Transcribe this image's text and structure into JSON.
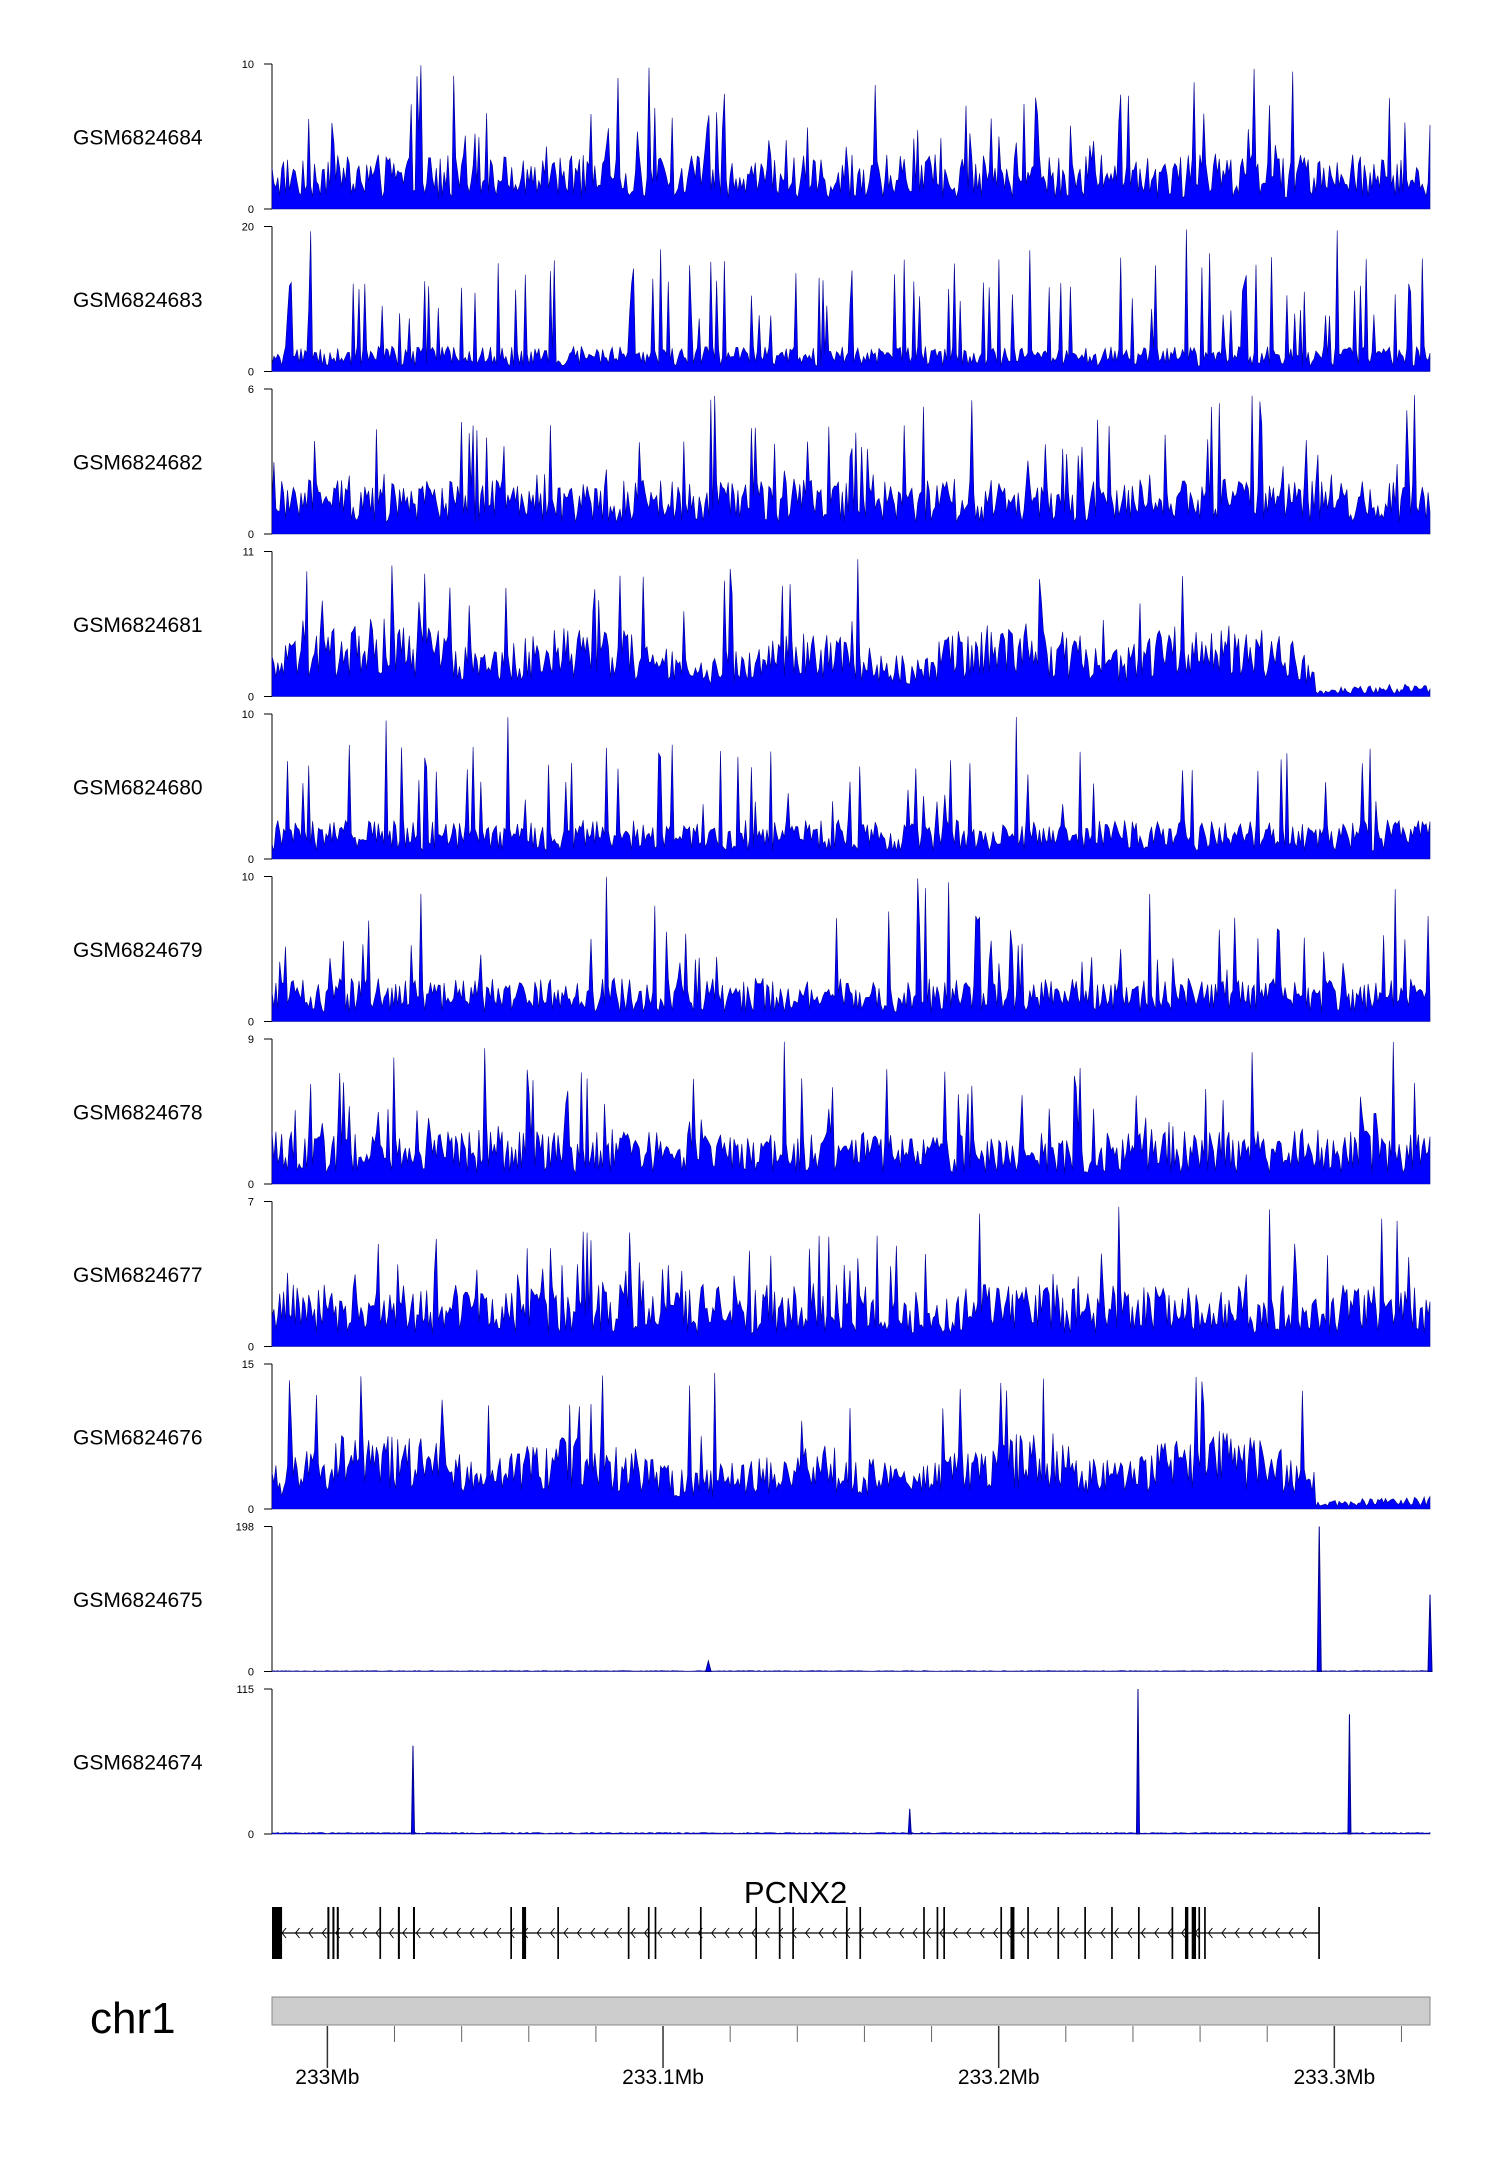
{
  "chart_data": {
    "type": "area",
    "track_color": "#0000ff",
    "outline_color": "#00008b",
    "tracks": [
      {
        "name": "GSM6824684",
        "ymax": 10,
        "ymin": 0,
        "pattern": "noise",
        "baseline": 2.5
      },
      {
        "name": "GSM6824683",
        "ymax": 20,
        "ymin": 0,
        "pattern": "spiky",
        "baseline": 3.5
      },
      {
        "name": "GSM6824682",
        "ymax": 6,
        "ymin": 0,
        "pattern": "noise",
        "baseline": 1.5
      },
      {
        "name": "GSM6824681",
        "ymax": 11,
        "ymin": 0,
        "pattern": "broad",
        "baseline": 3
      },
      {
        "name": "GSM6824680",
        "ymax": 10,
        "ymin": 0,
        "pattern": "noise",
        "baseline": 1.8
      },
      {
        "name": "GSM6824679",
        "ymax": 10,
        "ymin": 0,
        "pattern": "noise",
        "baseline": 2
      },
      {
        "name": "GSM6824678",
        "ymax": 9,
        "ymin": 0,
        "pattern": "noise",
        "baseline": 2.2
      },
      {
        "name": "GSM6824677",
        "ymax": 7,
        "ymin": 0,
        "pattern": "noise",
        "baseline": 2
      },
      {
        "name": "GSM6824676",
        "ymax": 15,
        "ymin": 0,
        "pattern": "broad",
        "baseline": 3
      },
      {
        "name": "GSM6824675",
        "ymax": 198,
        "ymin": 0,
        "pattern": "peaks",
        "baseline": 1,
        "peaks": [
          {
            "x": 233.1135,
            "h": 14,
            "w": 0.0008
          },
          {
            "x": 233.2955,
            "h": 198,
            "w": 0.0006
          },
          {
            "x": 233.3285,
            "h": 105,
            "w": 0.0006
          }
        ]
      },
      {
        "name": "GSM6824674",
        "ymax": 115,
        "ymin": 0,
        "pattern": "peaks",
        "baseline": 1,
        "peaks": [
          {
            "x": 233.0255,
            "h": 70,
            "w": 0.0003
          },
          {
            "x": 233.1735,
            "h": 20,
            "w": 0.0002
          },
          {
            "x": 233.2415,
            "h": 115,
            "w": 0.0004
          },
          {
            "x": 233.3045,
            "h": 95,
            "w": 0.0004
          }
        ]
      }
    ],
    "gene": {
      "name": "PCNX2",
      "start": 232.9835,
      "end": 233.2955,
      "strand": "-",
      "exons": [
        {
          "s": 232.9835,
          "e": 232.9865,
          "thick": true
        },
        {
          "s": 233.0,
          "e": 233.0006
        },
        {
          "s": 233.0015,
          "e": 233.0021
        },
        {
          "s": 233.0028,
          "e": 233.0034
        },
        {
          "s": 233.0155,
          "e": 233.016
        },
        {
          "s": 233.021,
          "e": 233.0216
        },
        {
          "s": 233.0255,
          "e": 233.0261
        },
        {
          "s": 233.0545,
          "e": 233.055
        },
        {
          "s": 233.058,
          "e": 233.0592,
          "thick": true
        },
        {
          "s": 233.0685,
          "e": 233.069
        },
        {
          "s": 233.0895,
          "e": 233.09
        },
        {
          "s": 233.0955,
          "e": 233.096
        },
        {
          "s": 233.0975,
          "e": 233.098
        },
        {
          "s": 233.111,
          "e": 233.1115
        },
        {
          "s": 233.1275,
          "e": 233.128
        },
        {
          "s": 233.1345,
          "e": 233.135
        },
        {
          "s": 233.1385,
          "e": 233.139
        },
        {
          "s": 233.1545,
          "e": 233.155
        },
        {
          "s": 233.1585,
          "e": 233.159
        },
        {
          "s": 233.1775,
          "e": 233.178
        },
        {
          "s": 233.1815,
          "e": 233.182
        },
        {
          "s": 233.1835,
          "e": 233.184
        },
        {
          "s": 233.2005,
          "e": 233.201
        },
        {
          "s": 233.2035,
          "e": 233.2045,
          "thick": true
        },
        {
          "s": 233.2085,
          "e": 233.209
        },
        {
          "s": 233.2175,
          "e": 233.218
        },
        {
          "s": 233.2255,
          "e": 233.226
        },
        {
          "s": 233.2335,
          "e": 233.234
        },
        {
          "s": 233.2415,
          "e": 233.242
        },
        {
          "s": 233.2515,
          "e": 233.252
        },
        {
          "s": 233.2555,
          "e": 233.2565
        },
        {
          "s": 233.2575,
          "e": 233.2588,
          "thick": true
        },
        {
          "s": 233.2595,
          "e": 233.26
        },
        {
          "s": 233.2612,
          "e": 233.2617
        },
        {
          "s": 233.2952,
          "e": 233.2957
        }
      ]
    },
    "chromosome": "chr1",
    "xlim": [
      232.9835,
      233.3285
    ],
    "major_ticks": [
      233.0,
      233.1,
      233.2,
      233.3
    ],
    "major_tick_labels": [
      "233Mb",
      "233.1Mb",
      "233.2Mb",
      "233.3Mb"
    ],
    "minor_ticks": [
      233.02,
      233.04,
      233.06,
      233.08,
      233.12,
      233.14,
      233.16,
      233.18,
      233.22,
      233.24,
      233.26,
      233.28,
      233.32
    ],
    "ideogram_color": "#cccccc"
  }
}
